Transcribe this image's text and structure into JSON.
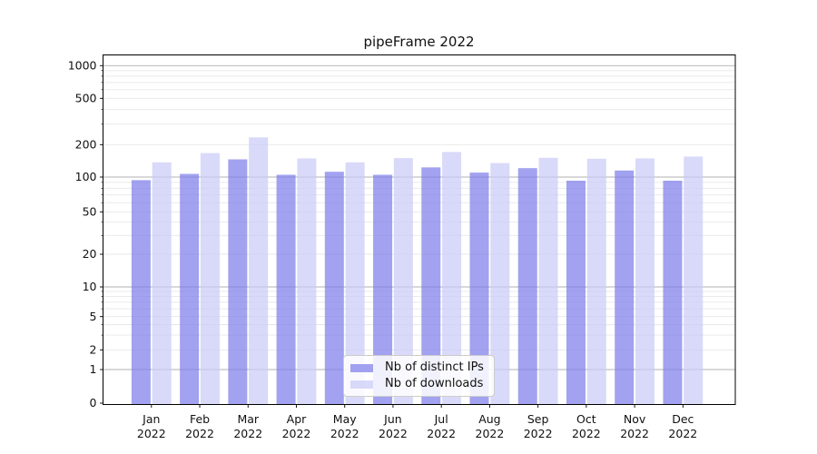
{
  "chart_data": {
    "type": "bar",
    "title": "pipeFrame 2022",
    "xlabel": "",
    "ylabel": "",
    "yscale": "symlog",
    "grid": true,
    "legend_position": "lower center",
    "year": "2022",
    "categories": [
      "Jan",
      "Feb",
      "Mar",
      "Apr",
      "May",
      "Jun",
      "Jul",
      "Aug",
      "Sep",
      "Oct",
      "Nov",
      "Dec"
    ],
    "ytick_values": [
      0,
      1,
      2,
      5,
      10,
      20,
      50,
      100,
      200,
      500,
      1000
    ],
    "ytick_labels": [
      "0",
      "1",
      "2",
      "5",
      "10",
      "20",
      "50",
      "100",
      "200",
      "500",
      "1000"
    ],
    "ylim": [
      0,
      1000
    ],
    "series": [
      {
        "name": "Nb of distinct IPs",
        "color": "rgba(126,126,234,0.72)",
        "color_hex": "#a2a2f0",
        "values": [
          94,
          107,
          146,
          105,
          112,
          105,
          123,
          110,
          121,
          93,
          115,
          93
        ]
      },
      {
        "name": "Nb of downloads",
        "color": "rgba(202,202,247,0.72)",
        "color_hex": "#d9d9f8",
        "values": [
          137,
          167,
          231,
          149,
          137,
          150,
          171,
          135,
          151,
          148,
          149,
          155
        ]
      }
    ],
    "grid_major_color": "#b0b0b0",
    "grid_minor_color": "#e7e7e7",
    "axis_color": "#000000",
    "text_color": "#111111"
  }
}
